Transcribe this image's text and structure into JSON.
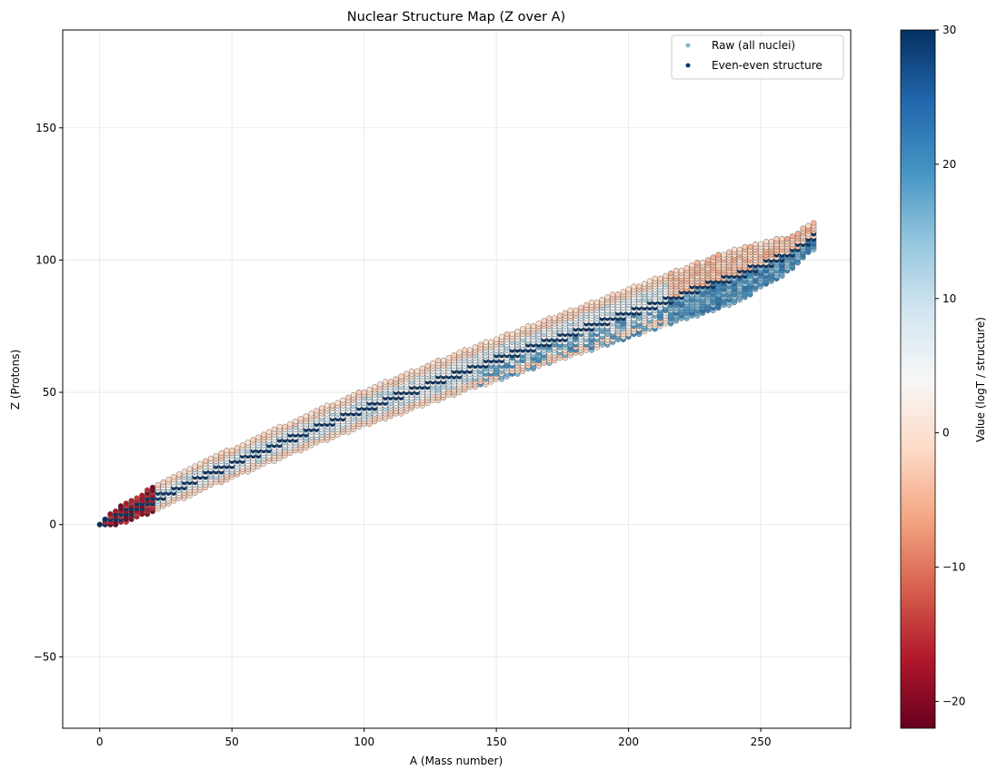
{
  "chart_data": {
    "type": "scatter",
    "title": "Nuclear Structure Map (Z over A)",
    "xlabel": "A (Mass number)",
    "ylabel": "Z (Protons)",
    "xlim": [
      -14,
      284
    ],
    "ylim": [
      -77,
      187
    ],
    "xticks": [
      0,
      50,
      100,
      150,
      200,
      250
    ],
    "yticks": [
      -50,
      0,
      50,
      100,
      150
    ],
    "grid": true,
    "legend_position": "top-right",
    "series": [
      {
        "name": "Raw (all nuclei)",
        "marker_color": "#7fb6c8"
      },
      {
        "name": "Even-even structure",
        "marker_color": "#0b3a6b"
      }
    ],
    "colorbar": {
      "label": "Value (logT / structure)",
      "range": [
        -22,
        30
      ],
      "ticks": [
        -20,
        -10,
        0,
        10,
        20,
        30
      ],
      "colormap": "RdBu",
      "stops": [
        "#67001f",
        "#b2182b",
        "#d6604d",
        "#f4a582",
        "#fddbc7",
        "#f7f7f7",
        "#d1e5f0",
        "#92c5de",
        "#4393c3",
        "#2166ac",
        "#053061"
      ]
    },
    "valley_of_stability": {
      "A": [
        0,
        10,
        20,
        40,
        60,
        80,
        100,
        120,
        140,
        160,
        180,
        200,
        220,
        240,
        260,
        270
      ],
      "Z": [
        0,
        4.5,
        9.5,
        19,
        27.5,
        36,
        44,
        51.5,
        59,
        66,
        73,
        80,
        87,
        94,
        102,
        109
      ]
    }
  }
}
